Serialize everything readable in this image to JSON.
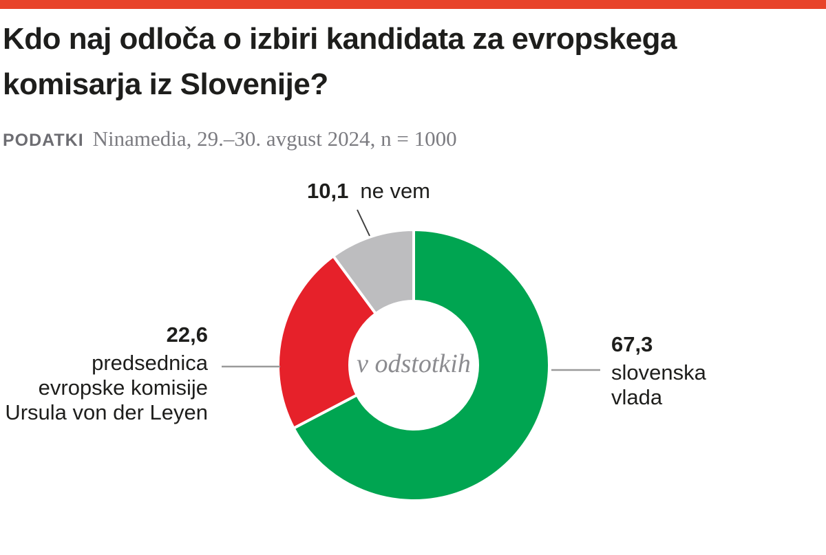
{
  "page": {
    "accent_color": "#e8432a",
    "title": "Kdo naj odloča o izbiri kandidata za evropskega\nkomisarja iz Slovenije?",
    "source_label": "PODATKI",
    "source_text": "Ninamedia, 29.–30. avgust 2024, n = 1000"
  },
  "chart_data": {
    "type": "pie",
    "variant": "donut",
    "title": "Kdo naj odloča o izbiri kandidata za evropskega komisarja iz Slovenije?",
    "center_label": "v odstotkih",
    "value_unit": "percent",
    "start_angle_deg": 0,
    "direction": "clockwise",
    "legend_position": "none",
    "slices": [
      {
        "label": "slovenska vlada",
        "value": 67.3,
        "value_display": "67,3",
        "color": "#00a551"
      },
      {
        "label": "predsednica evropske komisije Ursula von der Leyen",
        "value": 22.6,
        "value_display": "22,6",
        "color": "#e6212a"
      },
      {
        "label": "ne vem",
        "value": 10.1,
        "value_display": "10,1",
        "color": "#bdbdbf"
      }
    ]
  },
  "callouts": {
    "ne_vem": {
      "value": "10,1",
      "name": "ne vem"
    },
    "slovenska_vlada": {
      "value": "67,3",
      "name": "slovenska\nvlada"
    },
    "ursula": {
      "value": "22,6",
      "name": "predsednica\nevropske komisije\nUrsula von der Leyen"
    }
  }
}
